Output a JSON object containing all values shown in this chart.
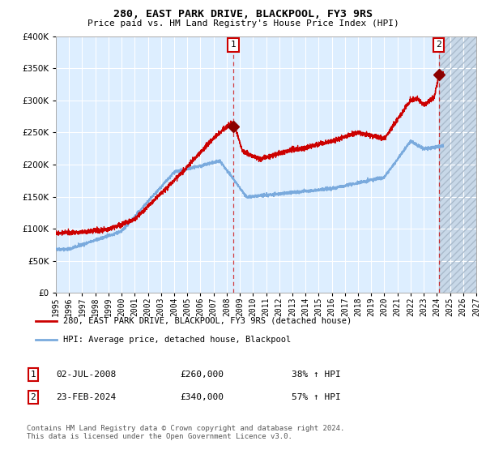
{
  "title": "280, EAST PARK DRIVE, BLACKPOOL, FY3 9RS",
  "subtitle": "Price paid vs. HM Land Registry's House Price Index (HPI)",
  "legend_line1": "280, EAST PARK DRIVE, BLACKPOOL, FY3 9RS (detached house)",
  "legend_line2": "HPI: Average price, detached house, Blackpool",
  "annotation1_date": "02-JUL-2008",
  "annotation1_price": "£260,000",
  "annotation1_hpi": "38% ↑ HPI",
  "annotation2_date": "23-FEB-2024",
  "annotation2_price": "£340,000",
  "annotation2_hpi": "57% ↑ HPI",
  "footer": "Contains HM Land Registry data © Crown copyright and database right 2024.\nThis data is licensed under the Open Government Licence v3.0.",
  "hpi_color": "#7aaadd",
  "house_color": "#cc0000",
  "marker_color": "#8b0000",
  "bg_color": "#ddeeff",
  "grid_color": "#ffffff",
  "ylim": [
    0,
    400000
  ],
  "yticks": [
    0,
    50000,
    100000,
    150000,
    200000,
    250000,
    300000,
    350000,
    400000
  ],
  "year_start": 1995,
  "year_end": 2027,
  "sale1_year": 2008.5,
  "sale1_value": 260000,
  "sale2_year": 2024.15,
  "sale2_value": 340000
}
